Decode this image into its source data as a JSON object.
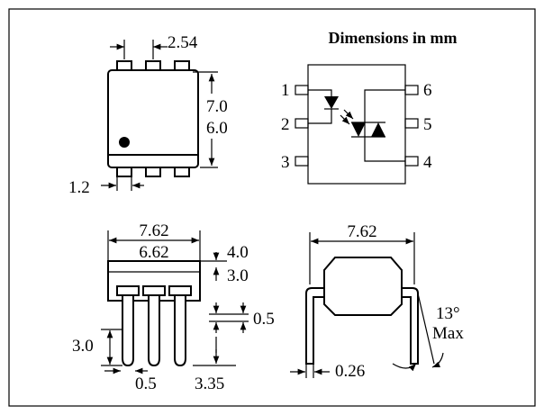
{
  "title": "Dimensions in mm",
  "top_view": {
    "pitch": "2.54",
    "height_outer": "7.0",
    "height_inner": "6.0",
    "pin_width": "1.2"
  },
  "schematic": {
    "pins_left": [
      "1",
      "2",
      "3"
    ],
    "pins_right": [
      "6",
      "5",
      "4"
    ]
  },
  "side_view": {
    "width_outer": "7.62",
    "width_inner": "6.62",
    "top_height_max": "4.0",
    "top_height_min": "3.0",
    "shoulder": "0.5",
    "lead_length": "3.0",
    "lead_width": "0.5",
    "seated_height": "3.35"
  },
  "end_view": {
    "lead_span": "7.62",
    "lead_thickness": "0.26",
    "angle": "13°",
    "angle_note": "Max"
  }
}
